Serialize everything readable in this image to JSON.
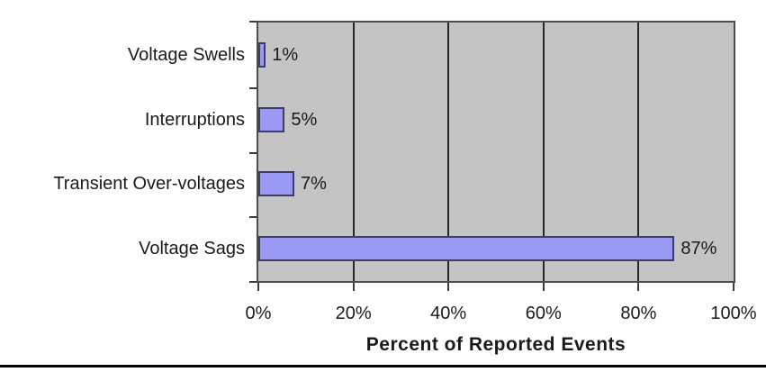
{
  "chart_data": {
    "type": "bar",
    "orientation": "horizontal",
    "title": "",
    "xlabel": "Percent of Reported Events",
    "ylabel": "",
    "categories": [
      "Voltage Swells",
      "Interruptions",
      "Transient Over-voltages",
      "Voltage Sags"
    ],
    "values": [
      1,
      5,
      7,
      87
    ],
    "value_labels": [
      "1%",
      "5%",
      "7%",
      "87%"
    ],
    "x_ticks": [
      "0%",
      "20%",
      "40%",
      "60%",
      "80%",
      "100%"
    ],
    "x_tick_values": [
      0,
      20,
      40,
      60,
      80,
      100
    ],
    "xlim": [
      0,
      100
    ],
    "grid": "vertical-major",
    "legend": "none",
    "colors": {
      "bar_fill": "#9a9af5",
      "bar_border": "#3c3c64",
      "plot_background": "#c4c4c4",
      "plot_border": "#4d4d4d",
      "gridline": "#262626",
      "text": "#1a1a1a",
      "page_rule": "#000000"
    }
  }
}
